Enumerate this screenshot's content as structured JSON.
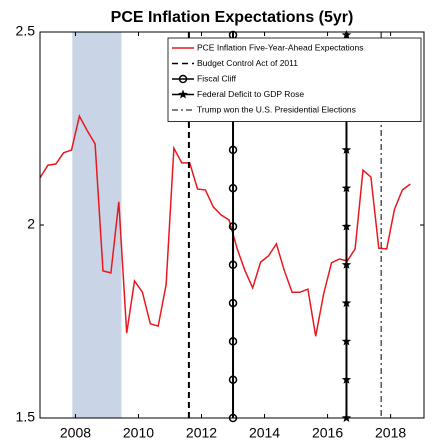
{
  "chart_data": {
    "type": "line",
    "title": "PCE Inflation Expectations (5yr)",
    "x": [
      2006.875,
      2007.125,
      2007.375,
      2007.625,
      2007.875,
      2008.125,
      2008.375,
      2008.625,
      2008.875,
      2009.125,
      2009.375,
      2009.625,
      2009.875,
      2010.125,
      2010.375,
      2010.625,
      2010.875,
      2011.125,
      2011.375,
      2011.625,
      2011.875,
      2012.125,
      2012.375,
      2012.625,
      2012.875,
      2013.125,
      2013.375,
      2013.625,
      2013.875,
      2014.125,
      2014.375,
      2014.625,
      2014.875,
      2015.125,
      2015.375,
      2015.625,
      2015.875,
      2016.125,
      2016.375,
      2016.625,
      2016.875,
      2017.125,
      2017.375,
      2017.625,
      2017.875,
      2018.125,
      2018.375,
      2018.625
    ],
    "series": [
      {
        "name": "PCE Inflation Five-Year-Ahead Expectations",
        "color": "#e8191e",
        "values": [
          2.122,
          2.155,
          2.158,
          2.187,
          2.194,
          2.282,
          2.244,
          2.21,
          1.881,
          1.876,
          2.06,
          1.72,
          1.855,
          1.826,
          1.744,
          1.738,
          1.845,
          2.199,
          2.161,
          2.161,
          2.093,
          2.091,
          2.047,
          2.026,
          2.013,
          1.94,
          1.883,
          1.837,
          1.904,
          1.92,
          1.951,
          1.883,
          1.826,
          1.826,
          1.834,
          1.712,
          1.821,
          1.902,
          1.912,
          1.907,
          1.938,
          2.142,
          2.124,
          1.94,
          1.938,
          2.041,
          2.091,
          2.106
        ]
      }
    ],
    "events": [
      {
        "name": "Budget Control Act of 2011",
        "x": 2011.6,
        "style": "dashed"
      },
      {
        "name": "Fiscal Cliff",
        "x": 2013.0,
        "style": "circle"
      },
      {
        "name": "Federal Deficit to GDP Rose",
        "x": 2016.6,
        "style": "star"
      },
      {
        "name": "Trump won the U.S. Presidential Elections",
        "x": 2017.7,
        "style": "dashdot"
      }
    ],
    "shaded_region": [
      2007.9,
      2009.46
    ],
    "shade_color": "#c9d5e6",
    "xlim": [
      2006.875,
      2019.06
    ],
    "xticks": [
      2008,
      2010,
      2012,
      2014,
      2016,
      2018
    ],
    "ylim": [
      1.5,
      2.5
    ],
    "yticks": [
      1.5,
      2,
      2.5
    ],
    "legend": "upper right"
  }
}
